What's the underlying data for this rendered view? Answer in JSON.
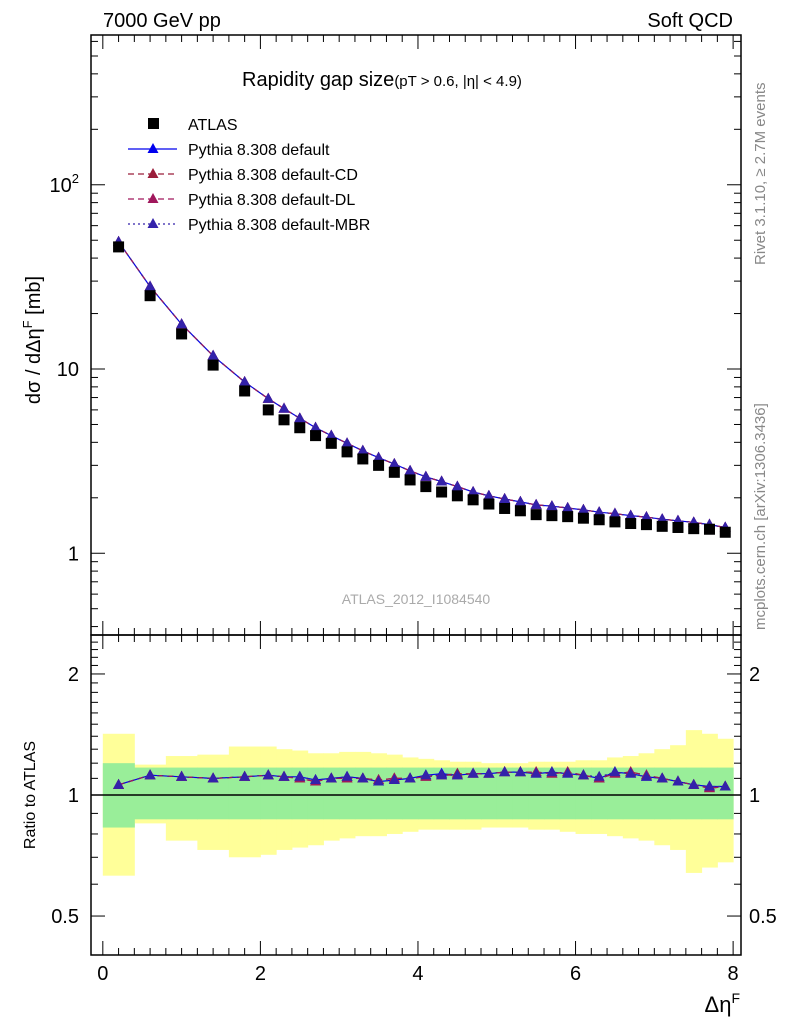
{
  "header": {
    "left": "7000 GeV pp",
    "right": "Soft QCD"
  },
  "side_labels": {
    "rivet": "Rivet 3.1.10, ≥ 2.7M events",
    "mcplots": "mcplots.cern.ch [arXiv:1306.3436]"
  },
  "main_title": "Rapidity gap size",
  "main_subtitle": "(pT > 0.6, |η| < 4.9)",
  "ylabel_main": "dσ / dΔηF [mb]",
  "ylabel_ratio": "Ratio to ATLAS",
  "xlabel": "ΔηF",
  "watermark": "ATLAS_2012_I1084540",
  "legend": [
    {
      "label": "ATLAS",
      "marker": "square",
      "color": "#000000",
      "line": "none"
    },
    {
      "label": "Pythia 8.308 default",
      "marker": "triangle",
      "color": "#0000ee",
      "line": "solid"
    },
    {
      "label": "Pythia 8.308 default-CD",
      "marker": "triangle",
      "color": "#9b1d3a",
      "line": "dashed"
    },
    {
      "label": "Pythia 8.308 default-DL",
      "marker": "triangle",
      "color": "#a0175c",
      "line": "dashed"
    },
    {
      "label": "Pythia 8.308 default-MBR",
      "marker": "triangle",
      "color": "#3322aa",
      "line": "dotted"
    }
  ],
  "chart_data": [
    {
      "type": "scatter",
      "panel": "main",
      "log_y": true,
      "xlim": [
        -0.15,
        8.1
      ],
      "ylim": [
        0.36,
        650
      ],
      "y_ticks": [
        {
          "value": 1,
          "label": "1"
        },
        {
          "value": 10,
          "label": "10"
        },
        {
          "value": 100,
          "label": "10",
          "sup": "2"
        }
      ],
      "x": [
        0.2,
        0.6,
        1.0,
        1.4,
        1.8,
        2.1,
        2.3,
        2.5,
        2.7,
        2.9,
        3.1,
        3.3,
        3.5,
        3.7,
        3.9,
        4.1,
        4.3,
        4.5,
        4.7,
        4.9,
        5.1,
        5.3,
        5.5,
        5.7,
        5.9,
        6.1,
        6.3,
        6.5,
        6.7,
        6.9,
        7.1,
        7.3,
        7.5,
        7.7,
        7.9
      ],
      "series": [
        {
          "name": "ATLAS",
          "values": [
            46,
            25,
            15.5,
            10.5,
            7.6,
            6.0,
            5.3,
            4.8,
            4.35,
            3.95,
            3.55,
            3.25,
            3.0,
            2.75,
            2.5,
            2.3,
            2.15,
            2.05,
            1.95,
            1.85,
            1.75,
            1.7,
            1.62,
            1.6,
            1.58,
            1.55,
            1.52,
            1.48,
            1.45,
            1.43,
            1.4,
            1.38,
            1.36,
            1.35,
            1.3
          ]
        },
        {
          "name": "Pythia 8.308 default",
          "values": [
            49,
            28,
            17.5,
            11.8,
            8.5,
            6.9,
            6.1,
            5.4,
            4.8,
            4.35,
            3.95,
            3.6,
            3.3,
            3.05,
            2.8,
            2.6,
            2.45,
            2.3,
            2.15,
            2.05,
            1.97,
            1.9,
            1.83,
            1.8,
            1.76,
            1.72,
            1.67,
            1.64,
            1.6,
            1.57,
            1.53,
            1.5,
            1.47,
            1.43,
            1.38
          ]
        },
        {
          "name": "Pythia 8.308 default-CD",
          "values": [
            49,
            28,
            17.5,
            11.8,
            8.5,
            6.9,
            6.1,
            5.4,
            4.8,
            4.35,
            3.95,
            3.6,
            3.3,
            3.05,
            2.8,
            2.6,
            2.45,
            2.3,
            2.15,
            2.05,
            1.97,
            1.9,
            1.83,
            1.8,
            1.76,
            1.72,
            1.67,
            1.64,
            1.6,
            1.57,
            1.53,
            1.5,
            1.47,
            1.43,
            1.38
          ]
        },
        {
          "name": "Pythia 8.308 default-DL",
          "values": [
            49,
            28,
            17.5,
            11.8,
            8.5,
            6.9,
            6.1,
            5.4,
            4.8,
            4.35,
            3.95,
            3.6,
            3.3,
            3.05,
            2.8,
            2.6,
            2.45,
            2.3,
            2.15,
            2.05,
            1.97,
            1.9,
            1.83,
            1.8,
            1.76,
            1.72,
            1.67,
            1.64,
            1.6,
            1.57,
            1.53,
            1.5,
            1.47,
            1.43,
            1.38
          ]
        },
        {
          "name": "Pythia 8.308 default-MBR",
          "values": [
            49,
            28,
            17.5,
            11.8,
            8.5,
            6.9,
            6.1,
            5.4,
            4.8,
            4.35,
            3.95,
            3.6,
            3.3,
            3.05,
            2.8,
            2.6,
            2.45,
            2.3,
            2.15,
            2.05,
            1.97,
            1.9,
            1.83,
            1.8,
            1.76,
            1.72,
            1.67,
            1.64,
            1.6,
            1.57,
            1.53,
            1.5,
            1.47,
            1.43,
            1.38
          ]
        }
      ]
    },
    {
      "type": "line",
      "panel": "ratio",
      "log_y": true,
      "xlim": [
        -0.15,
        8.1
      ],
      "ylim": [
        0.4,
        2.5
      ],
      "y_ticks": [
        {
          "value": 0.5,
          "label": "0.5"
        },
        {
          "value": 1,
          "label": "1"
        },
        {
          "value": 2,
          "label": "2"
        }
      ],
      "x_ticks": [
        0,
        2,
        4,
        6,
        8
      ],
      "reference_line": 1,
      "band_edges": [
        0,
        0.4,
        0.8,
        1.2,
        1.6,
        2.0,
        2.2,
        2.4,
        2.6,
        2.8,
        3.0,
        3.2,
        3.4,
        3.6,
        3.8,
        4.0,
        4.2,
        4.4,
        4.6,
        4.8,
        5.0,
        5.2,
        5.4,
        5.6,
        5.8,
        6.0,
        6.2,
        6.4,
        6.6,
        6.8,
        7.0,
        7.2,
        7.4,
        7.6,
        7.8,
        8.0
      ],
      "band_stat": {
        "up": [
          1.2,
          1.17,
          1.17,
          1.17,
          1.17,
          1.17,
          1.17,
          1.17,
          1.17,
          1.17,
          1.17,
          1.17,
          1.17,
          1.17,
          1.17,
          1.17,
          1.17,
          1.17,
          1.17,
          1.17,
          1.17,
          1.17,
          1.17,
          1.17,
          1.17,
          1.17,
          1.17,
          1.17,
          1.17,
          1.17,
          1.17,
          1.17,
          1.17,
          1.17,
          1.17
        ],
        "down": [
          0.83,
          0.87,
          0.87,
          0.87,
          0.87,
          0.87,
          0.87,
          0.87,
          0.87,
          0.87,
          0.87,
          0.87,
          0.87,
          0.87,
          0.87,
          0.87,
          0.87,
          0.87,
          0.87,
          0.87,
          0.87,
          0.87,
          0.87,
          0.87,
          0.87,
          0.87,
          0.87,
          0.87,
          0.87,
          0.87,
          0.87,
          0.87,
          0.87,
          0.87,
          0.87
        ]
      },
      "band_total": {
        "up": [
          1.42,
          1.19,
          1.25,
          1.26,
          1.32,
          1.32,
          1.3,
          1.29,
          1.27,
          1.27,
          1.28,
          1.28,
          1.27,
          1.26,
          1.24,
          1.23,
          1.22,
          1.21,
          1.21,
          1.2,
          1.2,
          1.2,
          1.21,
          1.21,
          1.21,
          1.22,
          1.22,
          1.24,
          1.25,
          1.27,
          1.3,
          1.33,
          1.45,
          1.42,
          1.38
        ],
        "down": [
          0.63,
          0.85,
          0.77,
          0.73,
          0.7,
          0.71,
          0.73,
          0.74,
          0.75,
          0.77,
          0.78,
          0.79,
          0.79,
          0.8,
          0.81,
          0.82,
          0.82,
          0.82,
          0.82,
          0.83,
          0.83,
          0.83,
          0.82,
          0.82,
          0.81,
          0.8,
          0.8,
          0.79,
          0.78,
          0.77,
          0.75,
          0.73,
          0.64,
          0.66,
          0.68
        ]
      },
      "x": [
        0.2,
        0.6,
        1.0,
        1.4,
        1.8,
        2.1,
        2.3,
        2.5,
        2.7,
        2.9,
        3.1,
        3.3,
        3.5,
        3.7,
        3.9,
        4.1,
        4.3,
        4.5,
        4.7,
        4.9,
        5.1,
        5.3,
        5.5,
        5.7,
        5.9,
        6.1,
        6.3,
        6.5,
        6.7,
        6.9,
        7.1,
        7.3,
        7.5,
        7.7,
        7.9
      ],
      "series": [
        {
          "name": "Pythia 8.308 default",
          "values": [
            1.06,
            1.12,
            1.11,
            1.1,
            1.11,
            1.12,
            1.11,
            1.11,
            1.09,
            1.1,
            1.11,
            1.1,
            1.08,
            1.09,
            1.1,
            1.12,
            1.13,
            1.12,
            1.13,
            1.13,
            1.14,
            1.14,
            1.13,
            1.14,
            1.13,
            1.12,
            1.1,
            1.14,
            1.13,
            1.11,
            1.1,
            1.08,
            1.06,
            1.05,
            1.05
          ]
        },
        {
          "name": "Pythia 8.308 default-CD",
          "values": [
            1.06,
            1.12,
            1.11,
            1.1,
            1.11,
            1.12,
            1.11,
            1.1,
            1.08,
            1.1,
            1.1,
            1.1,
            1.09,
            1.1,
            1.1,
            1.11,
            1.12,
            1.13,
            1.13,
            1.13,
            1.14,
            1.14,
            1.14,
            1.13,
            1.14,
            1.12,
            1.1,
            1.13,
            1.14,
            1.12,
            1.1,
            1.08,
            1.06,
            1.04,
            1.05
          ]
        },
        {
          "name": "Pythia 8.308 default-DL",
          "values": [
            1.06,
            1.12,
            1.11,
            1.1,
            1.11,
            1.12,
            1.11,
            1.1,
            1.08,
            1.1,
            1.1,
            1.1,
            1.09,
            1.1,
            1.1,
            1.11,
            1.12,
            1.12,
            1.13,
            1.13,
            1.14,
            1.14,
            1.14,
            1.13,
            1.14,
            1.12,
            1.1,
            1.13,
            1.14,
            1.12,
            1.1,
            1.08,
            1.06,
            1.04,
            1.05
          ]
        },
        {
          "name": "Pythia 8.308 default-MBR",
          "values": [
            1.06,
            1.12,
            1.11,
            1.1,
            1.11,
            1.12,
            1.11,
            1.11,
            1.09,
            1.1,
            1.11,
            1.1,
            1.08,
            1.09,
            1.1,
            1.12,
            1.12,
            1.12,
            1.13,
            1.13,
            1.14,
            1.14,
            1.13,
            1.14,
            1.13,
            1.12,
            1.11,
            1.14,
            1.13,
            1.11,
            1.1,
            1.08,
            1.06,
            1.05,
            1.05
          ]
        }
      ]
    }
  ]
}
